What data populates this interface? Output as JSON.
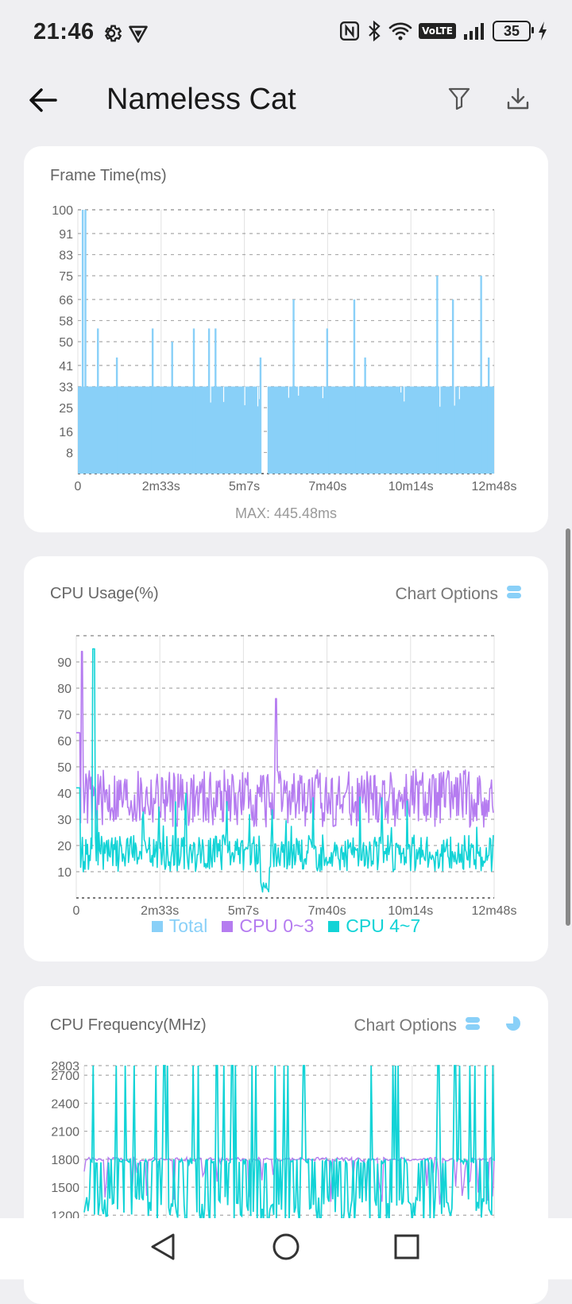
{
  "status_bar": {
    "time": "21:46",
    "left_icons": [
      "settings-icon",
      "vpn-shield-icon"
    ],
    "right_icons": [
      "nfc-icon",
      "bluetooth-icon",
      "wifi-icon",
      "volte-icon",
      "signal-icon",
      "battery-icon",
      "charging-icon"
    ],
    "volte_label": "VoLTE",
    "battery_level": "35"
  },
  "app_bar": {
    "title": "Nameless Cat",
    "back_icon": "back-arrow-icon",
    "filter_icon": "filter-icon",
    "download_icon": "download-icon"
  },
  "colors": {
    "total": "#89d0f8",
    "cpu_0_3": "#b57cf0",
    "cpu_4_7": "#12d3d6",
    "grid": "#d2d2d2",
    "axis_text": "#666666"
  },
  "frame_time_card": {
    "title": "Frame Time(ms)",
    "max_label": "MAX: 445.48ms"
  },
  "cpu_usage_card": {
    "title": "CPU Usage(%)",
    "chart_options_label": "Chart Options"
  },
  "cpu_freq_card": {
    "title": "CPU Frequency(MHz)",
    "chart_options_label": "Chart Options"
  },
  "chart_data": [
    {
      "type": "area",
      "title": "Frame Time(ms)",
      "x_ticks": [
        "0",
        "2m33s",
        "5m7s",
        "7m40s",
        "10m14s",
        "12m48s"
      ],
      "y_ticks": [
        "8",
        "16",
        "25",
        "33",
        "41",
        "50",
        "58",
        "66",
        "75",
        "83",
        "91",
        "100"
      ],
      "ylim": [
        0,
        100
      ],
      "xlim_seconds": [
        0,
        768
      ],
      "baseline_ms": 33,
      "spikes": [
        {
          "t": 9,
          "v": 100
        },
        {
          "t": 14,
          "v": 100
        },
        {
          "t": 37,
          "v": 55
        },
        {
          "t": 72,
          "v": 44
        },
        {
          "t": 138,
          "v": 55
        },
        {
          "t": 174,
          "v": 50
        },
        {
          "t": 214,
          "v": 55
        },
        {
          "t": 242,
          "v": 55
        },
        {
          "t": 254,
          "v": 55
        },
        {
          "t": 337,
          "v": 44
        },
        {
          "t": 398,
          "v": 66
        },
        {
          "t": 460,
          "v": 55
        },
        {
          "t": 510,
          "v": 66
        },
        {
          "t": 530,
          "v": 44
        },
        {
          "t": 663,
          "v": 75
        },
        {
          "t": 692,
          "v": 66
        },
        {
          "t": 744,
          "v": 75
        },
        {
          "t": 758,
          "v": 44
        }
      ],
      "gaps": [
        {
          "t_start": 338,
          "t_end": 350
        }
      ],
      "max_ms": 445.48
    },
    {
      "type": "line",
      "title": "CPU Usage(%)",
      "x_ticks": [
        "0",
        "2m33s",
        "5m7s",
        "7m40s",
        "10m14s",
        "12m48s"
      ],
      "y_ticks": [
        "10",
        "20",
        "30",
        "40",
        "50",
        "60",
        "70",
        "80",
        "90"
      ],
      "ylim": [
        0,
        100
      ],
      "xlim_seconds": [
        0,
        768
      ],
      "series": [
        {
          "name": "Total",
          "mean": 25,
          "peak": 0
        },
        {
          "name": "CPU 0~3",
          "mean": 38,
          "peak": 94,
          "peak_t": 10,
          "second_peak": 76,
          "second_peak_t": 367
        },
        {
          "name": "CPU 4~7",
          "mean": 17,
          "peak": 95,
          "peak_t": 32
        }
      ],
      "legend": [
        "Total",
        "CPU 0~3",
        "CPU 4~7"
      ]
    },
    {
      "type": "line",
      "title": "CPU Frequency(MHz)",
      "y_ticks": [
        "1200",
        "1500",
        "1800",
        "2100",
        "2400",
        "2700",
        "2803"
      ],
      "ylim": [
        1100,
        2803
      ],
      "xlim_seconds": [
        0,
        768
      ],
      "series": [
        {
          "name": "CPU 0~3",
          "typical": 1800
        },
        {
          "name": "CPU 4~7",
          "typical": 1800,
          "peak": 2803
        }
      ]
    }
  ],
  "nav_bar": {
    "buttons": [
      "nav-back-icon",
      "nav-home-icon",
      "nav-recents-icon"
    ]
  }
}
